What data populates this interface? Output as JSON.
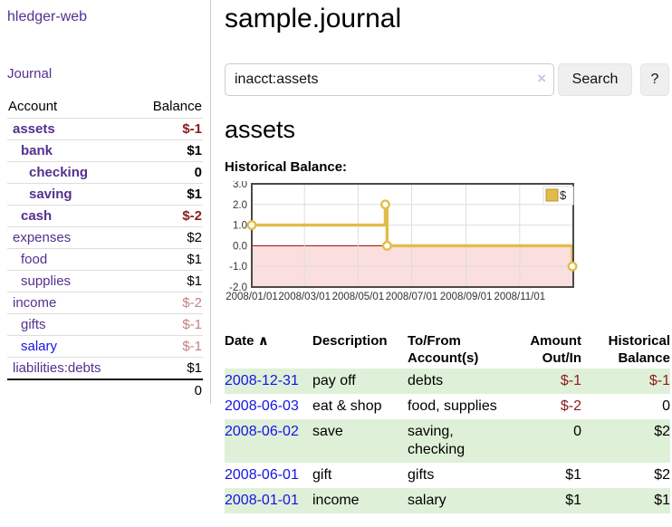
{
  "theme": {
    "purple": "#55308f",
    "blue": "#1414e6",
    "neg": "#8b1c1c",
    "negm": "#c28181",
    "green": "#dff0d8",
    "gold": "#e2bc4a",
    "pink": "#fbdede",
    "zero": "#a40000"
  },
  "sidebar": {
    "app_title": "hledger-web",
    "nav": {
      "journal": "Journal"
    },
    "accounts_table": {
      "col_account": "Account",
      "col_balance": "Balance",
      "rows": [
        {
          "name": "assets",
          "balance": "$-1"
        },
        {
          "name": "bank",
          "balance": "$1"
        },
        {
          "name": "checking",
          "balance": "0"
        },
        {
          "name": "saving",
          "balance": "$1"
        },
        {
          "name": "cash",
          "balance": "$-2"
        },
        {
          "name": "expenses",
          "balance": "$2"
        },
        {
          "name": "food",
          "balance": "$1"
        },
        {
          "name": "supplies",
          "balance": "$1"
        },
        {
          "name": "income",
          "balance": "$-2"
        },
        {
          "name": "gifts",
          "balance": "$-1"
        },
        {
          "name": "salary",
          "balance": "$-1"
        },
        {
          "name": "liabilities:debts",
          "balance": "$1"
        }
      ],
      "total": "0"
    }
  },
  "header": {
    "title": "sample.journal"
  },
  "search": {
    "value": "inacct:assets",
    "button": "Search",
    "help_button": "?"
  },
  "icons": {
    "clear_search": "×",
    "sort_asc": "∧"
  },
  "account_page": {
    "title": "assets",
    "chart_label": "Historical Balance:"
  },
  "chart_data": {
    "type": "line",
    "step": true,
    "title": "Historical Balance",
    "series": [
      {
        "name": "$",
        "points": [
          [
            "2008-01-01",
            1
          ],
          [
            "2008-06-01",
            2
          ],
          [
            "2008-06-03",
            0
          ],
          [
            "2008-12-31",
            -1
          ]
        ]
      }
    ],
    "ylim": [
      -2,
      3
    ],
    "yticks": [
      3.0,
      2.0,
      1.0,
      0.0,
      -1.0,
      -2.0
    ],
    "xticks": [
      "2008/01/01",
      "2008/03/01",
      "2008/05/01",
      "2008/07/01",
      "2008/09/01",
      "2008/11/01"
    ],
    "x_range": [
      "2008-01-01",
      "2009-01-01"
    ],
    "legend_position": "top-right",
    "grid": true,
    "negative_region_shaded": true
  },
  "register": {
    "headers": {
      "date": "Date",
      "description": "Description",
      "accounts": "To/From Account(s)",
      "amount": "Amount Out/In",
      "balance": "Historical Balance"
    },
    "rows": [
      {
        "date": "2008-12-31",
        "description": "pay off",
        "accounts": "debts",
        "amount": "$-1",
        "balance": "$-1"
      },
      {
        "date": "2008-06-03",
        "description": "eat & shop",
        "accounts": "food, supplies",
        "amount": "$-2",
        "balance": "0"
      },
      {
        "date": "2008-06-02",
        "description": "save",
        "accounts": "saving, checking",
        "amount": "0",
        "balance": "$2"
      },
      {
        "date": "2008-06-01",
        "description": "gift",
        "accounts": "gifts",
        "amount": "$1",
        "balance": "$2"
      },
      {
        "date": "2008-01-01",
        "description": "income",
        "accounts": "salary",
        "amount": "$1",
        "balance": "$1"
      }
    ]
  }
}
